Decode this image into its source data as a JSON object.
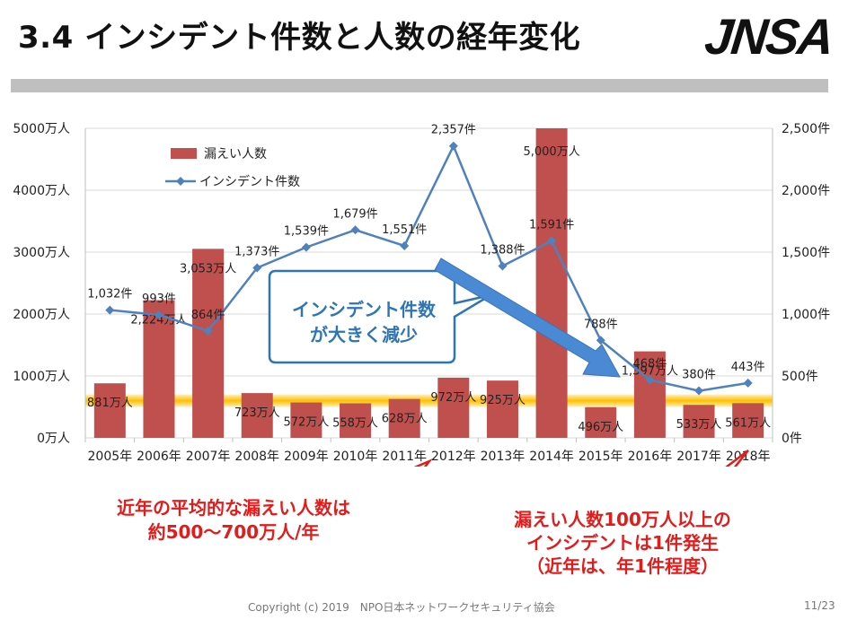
{
  "header": {
    "title": "3.4 インシデント件数と人数の経年変化",
    "logo_text": "JNSA"
  },
  "chart_data": {
    "type": "bar",
    "categories": [
      "2005年",
      "2006年",
      "2007年",
      "2008年",
      "2009年",
      "2010年",
      "2011年",
      "2012年",
      "2013年",
      "2014年",
      "2015年",
      "2016年",
      "2017年",
      "2018年"
    ],
    "series": [
      {
        "name": "漏えい人数",
        "chart": "bar",
        "axis": "left",
        "color": "#c0504d",
        "values": [
          881,
          2224,
          3053,
          723,
          572,
          558,
          628,
          972,
          925,
          5000,
          496,
          1397,
          533,
          561
        ],
        "labels": [
          "881万人",
          "2,224万人",
          "3,053万人",
          "723万人",
          "572万人",
          "558万人",
          "628万人",
          "972万人",
          "925万人",
          "5,000万人",
          "496万人",
          "1,397万人",
          "533万人",
          "561万人"
        ]
      },
      {
        "name": "インシデント件数",
        "chart": "line",
        "axis": "right",
        "color": "#4f81bd",
        "values": [
          1032,
          993,
          864,
          1373,
          1539,
          1679,
          1551,
          2357,
          1388,
          1591,
          788,
          468,
          380,
          443
        ],
        "labels": [
          "1,032件",
          "993件",
          "864件",
          "1,373件",
          "1,539件",
          "1,679件",
          "1,551件",
          "2,357件",
          "1,388件",
          "1,591件",
          "788件",
          "468件",
          "380件",
          "443件"
        ]
      }
    ],
    "y_left": {
      "range": [
        0,
        5000
      ],
      "ticks": [
        0,
        1000,
        2000,
        3000,
        4000,
        5000
      ],
      "tick_labels": [
        "0万人",
        "1000万人",
        "2000万人",
        "3000万人",
        "4000万人",
        "5000万人"
      ]
    },
    "y_right": {
      "range": [
        0,
        2500
      ],
      "ticks": [
        0,
        500,
        1000,
        1500,
        2000,
        2500
      ],
      "tick_labels": [
        "0件",
        "500件",
        "1,000件",
        "1,500件",
        "2,000件",
        "2,500件"
      ]
    },
    "highlight_band_range_man": [
      500,
      700
    ],
    "grid": true,
    "legend_position": "top-left"
  },
  "annotations": {
    "middle": [
      "インシデント件数",
      "が大きく減少"
    ],
    "left": [
      "近年の平均的な漏えい人数は",
      "約500〜700万人/年"
    ],
    "right": [
      "漏えい人数100万人以上の",
      "インシデントは1件発生",
      "（近年は、年1件程度）"
    ]
  },
  "colors": {
    "bar": "#c0504d",
    "line": "#4f81bd",
    "band": "#ffc000",
    "arrow": "#4a8ad4",
    "callout_red": "#e31b1b",
    "callout_blue": "#2e75b6"
  },
  "footer": {
    "copyright": "Copyright (c) 2019　NPO日本ネットワークセキュリティ協会",
    "page": "11/23"
  }
}
